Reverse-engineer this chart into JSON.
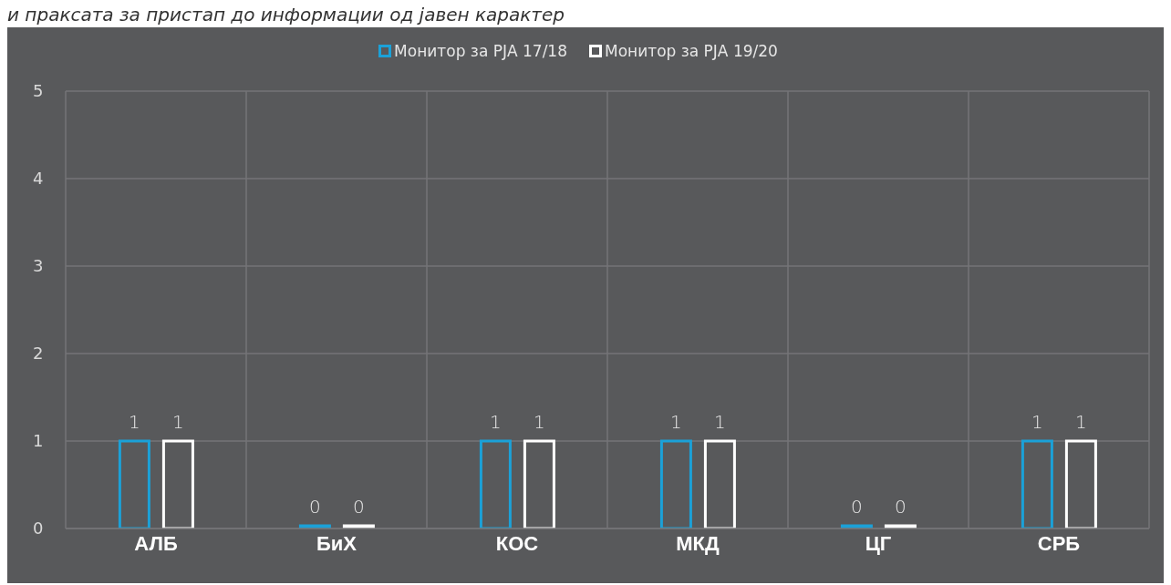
{
  "chart_data": {
    "type": "bar",
    "title": "и праксата за пристап до информации од јавен карактер",
    "categories": [
      "АЛБ",
      "БиХ",
      "КОС",
      "МКД",
      "ЦГ",
      "СРБ"
    ],
    "series": [
      {
        "name": "Монитор за РЈА 17/18",
        "color": "#1ba1d8",
        "values": [
          1,
          0,
          1,
          1,
          0,
          1
        ]
      },
      {
        "name": "Монитор за РЈА 19/20",
        "color": "#ffffff",
        "values": [
          1,
          0,
          1,
          1,
          0,
          1
        ]
      }
    ],
    "ylim": [
      0,
      5
    ],
    "yticks": [
      0,
      1,
      2,
      3,
      4,
      5
    ],
    "grid": true,
    "legend": "top",
    "data_labels": true
  }
}
